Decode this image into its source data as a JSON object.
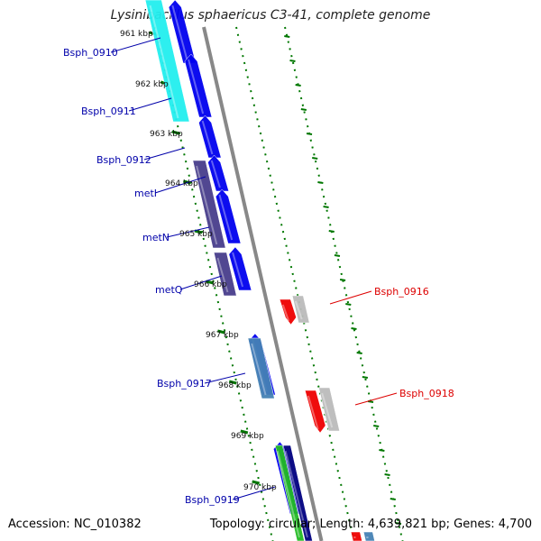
{
  "title": "Lysinibacillus sphaericus C3-41, complete genome",
  "footer": {
    "accession": "Accession: NC_010382",
    "summary": "Topology: circular; Length: 4,639,821 bp; Genes: 4,700"
  },
  "ticks": [
    "961 kbp",
    "962 kbp",
    "963 kbp",
    "964 kbp",
    "965 kbp",
    "966 kbp",
    "967 kbp",
    "968 kbp",
    "969 kbp",
    "970 kbp"
  ],
  "genes_left": [
    {
      "name": "Bsph_0910"
    },
    {
      "name": "Bsph_0911"
    },
    {
      "name": "Bsph_0912"
    },
    {
      "name": "metI"
    },
    {
      "name": "metN"
    },
    {
      "name": "metQ"
    },
    {
      "name": "Bsph_0917"
    },
    {
      "name": "Bsph_0919"
    }
  ],
  "genes_right": [
    {
      "name": "Bsph_0916"
    },
    {
      "name": "Bsph_0918"
    }
  ],
  "colors": {
    "blue": "#0000ee",
    "cyan": "#22eeee",
    "purple": "#483d8b",
    "steel": "#4682b4",
    "red": "#ee0000",
    "gray": "#bbbbbb",
    "green": "#22bb22",
    "navy": "#000080",
    "backbone": "#888888",
    "tickGreen": "#007700",
    "labelBlue": "#0000aa",
    "labelRed": "#dd0000"
  }
}
